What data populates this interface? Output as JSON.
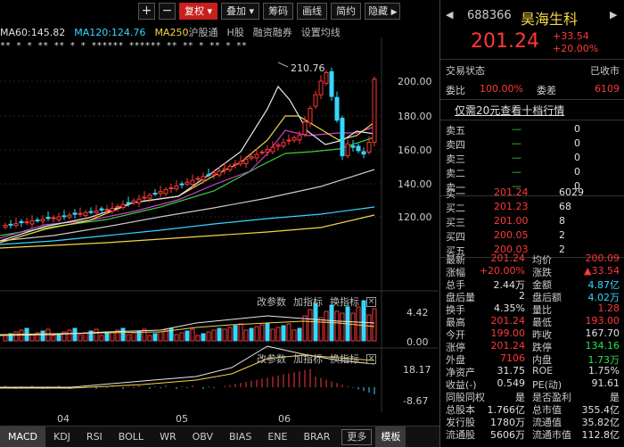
{
  "toolbar": {
    "plus": "+",
    "minus": "−",
    "fuquan": "复权",
    "dieja": "叠加",
    "chouma": "筹码",
    "huaxian": "画线",
    "jianyue": "简约",
    "yincang": "隐藏"
  },
  "ma": {
    "ma60": "MA60:145.82",
    "ma120": "MA120:124.76",
    "ma250": "MA250",
    "tag1": "沪股通",
    "tag2": "H股",
    "tag3": "融资融券",
    "tag4": "设置均线"
  },
  "chart": {
    "y_labels": [
      "200.00",
      "180.00",
      "160.00",
      "140.00",
      "120.00"
    ],
    "peak_label": "210.76",
    "x_labels": [
      "04",
      "05",
      "06"
    ],
    "vol_labels": [
      "4.42",
      "0.00"
    ],
    "macd_labels": [
      "18.17",
      "-8.67"
    ],
    "param1": "改参数",
    "param2": "加指标",
    "param3": "换指标",
    "close": "×",
    "markers": "** * *  ** ** * *  ****** ******  **  ** * ** * **"
  },
  "tabs": [
    "MACD",
    "KDJ",
    "RSI",
    "BOLL",
    "WR",
    "OBV",
    "BIAS",
    "ENE",
    "BRAR",
    "更多",
    "模板"
  ],
  "stock": {
    "code": "688366",
    "name": "昊海生科",
    "price": "201.24",
    "change": "+33.54",
    "change_pct": "+20.00%",
    "trade_status_label": "交易状态",
    "trade_status": "已收市",
    "weibi_label": "委比",
    "weibi": "100.00%",
    "weicha_label": "委差",
    "weicha": "6109",
    "promo": "仅需20元查看十档行情"
  },
  "sells": [
    {
      "label": "卖五",
      "price": "—",
      "vol": "0"
    },
    {
      "label": "卖四",
      "price": "—",
      "vol": "0"
    },
    {
      "label": "卖三",
      "price": "—",
      "vol": "0"
    },
    {
      "label": "卖二",
      "price": "—",
      "vol": "0"
    },
    {
      "label": "卖一",
      "price": "—",
      "vol": "0"
    }
  ],
  "buys": [
    {
      "label": "买一",
      "price": "201.24",
      "vol": "6029"
    },
    {
      "label": "买二",
      "price": "201.23",
      "vol": "68"
    },
    {
      "label": "买三",
      "price": "201.00",
      "vol": "8"
    },
    {
      "label": "买四",
      "price": "200.05",
      "vol": "2"
    },
    {
      "label": "买五",
      "price": "200.03",
      "vol": "2"
    }
  ],
  "stats": [
    {
      "l1": "最新",
      "v1": "201.24",
      "c1": "red",
      "l2": "均价",
      "v2": "200.09",
      "c2": "red"
    },
    {
      "l1": "涨幅",
      "v1": "+20.00%",
      "c1": "red",
      "l2": "涨跌",
      "v2": "▲33.54",
      "c2": "red"
    },
    {
      "l1": "总手",
      "v1": "2.44万",
      "c1": "white",
      "l2": "金额",
      "v2": "4.87亿",
      "c2": "cyan"
    },
    {
      "l1": "盘后量",
      "v1": "2",
      "c1": "white",
      "l2": "盘后额",
      "v2": "4.02万",
      "c2": "cyan"
    },
    {
      "l1": "换手",
      "v1": "4.35%",
      "c1": "white",
      "l2": "量比",
      "v2": "1.28",
      "c2": "red"
    },
    {
      "l1": "最高",
      "v1": "201.24",
      "c1": "red",
      "l2": "最低",
      "v2": "193.00",
      "c2": "red"
    },
    {
      "l1": "今开",
      "v1": "199.00",
      "c1": "red",
      "l2": "昨收",
      "v2": "167.70",
      "c2": "white"
    },
    {
      "l1": "涨停",
      "v1": "201.24",
      "c1": "red",
      "l2": "跌停",
      "v2": "134.16",
      "c2": "green"
    },
    {
      "l1": "外盘",
      "v1": "7106",
      "c1": "red",
      "l2": "内盘",
      "v2": "1.73万",
      "c2": "green"
    },
    {
      "l1": "净资产",
      "v1": "31.75",
      "c1": "white",
      "l2": "ROE",
      "v2": "1.75%",
      "c2": "white"
    },
    {
      "l1": "收益(-)",
      "v1": "0.549",
      "c1": "white",
      "l2": "PE(动)",
      "v2": "91.61",
      "c2": "white"
    },
    {
      "l1": "同股同权",
      "v1": "是",
      "c1": "white",
      "l2": "是否盈利",
      "v2": "是",
      "c2": "white"
    },
    {
      "l1": "总股本",
      "v1": "1.766亿",
      "c1": "white",
      "l2": "总市值",
      "v2": "355.4亿",
      "c2": "white"
    },
    {
      "l1": "发行股",
      "v1": "1780万",
      "c1": "white",
      "l2": "流通值",
      "v2": "35.82亿",
      "c2": "white"
    },
    {
      "l1": "流通股",
      "v1": "5606万",
      "c1": "white",
      "l2": "流通市值",
      "v2": "112.8亿",
      "c2": "white"
    }
  ],
  "colors": {
    "up": "#ff3838",
    "down": "#35d7ff",
    "ma5": "#e8e8e8",
    "ma10": "#f5d645",
    "ma20": "#d040d0",
    "ma30": "#38d038",
    "ma60": "#c8c8c8",
    "ma120": "#35d7ff",
    "ma250": "#f5d645"
  }
}
